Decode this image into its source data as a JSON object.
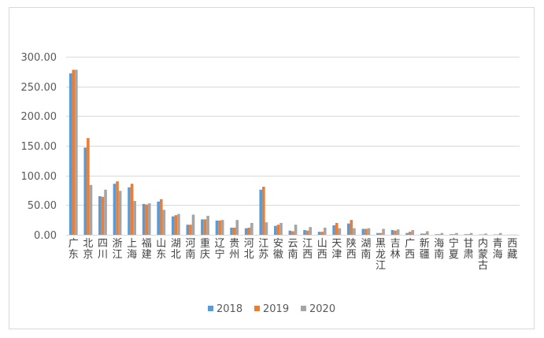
{
  "chart_data": {
    "type": "bar",
    "title": "",
    "xlabel": "",
    "ylabel": "",
    "ylim": [
      0,
      300
    ],
    "yticks": [
      "0.00",
      "50.00",
      "100.00",
      "150.00",
      "200.00",
      "250.00",
      "300.00"
    ],
    "grid": true,
    "legend_position": "bottom",
    "categories": [
      "广东",
      "北京",
      "四川",
      "浙江",
      "上海",
      "福建",
      "山东",
      "湖北",
      "河南",
      "重庆",
      "辽宁",
      "贵州",
      "河北",
      "江苏",
      "安徽",
      "云南",
      "江西",
      "山西",
      "天津",
      "陕西",
      "湖南",
      "黑龙江",
      "吉林",
      "广西",
      "新疆",
      "海南",
      "宁夏",
      "甘肃",
      "内蒙古",
      "青海",
      "西藏"
    ],
    "series": [
      {
        "name": "2018",
        "color": "#5b9bd5",
        "values": [
          272,
          147,
          65,
          86,
          80,
          52,
          56,
          31,
          17,
          26,
          24,
          12,
          11,
          76,
          15,
          7,
          8,
          5,
          16,
          19,
          10,
          3,
          8,
          3,
          2,
          1,
          1,
          1,
          0.5,
          0.5,
          0.2
        ]
      },
      {
        "name": "2019",
        "color": "#ed7d31",
        "values": [
          278,
          163,
          64,
          90,
          86,
          51,
          60,
          33,
          17,
          26,
          24,
          12,
          12,
          81,
          17,
          6,
          7,
          5,
          20,
          25,
          10,
          3,
          7,
          5,
          2,
          1,
          1,
          1,
          0.5,
          0.5,
          0.2
        ]
      },
      {
        "name": "2020",
        "color": "#a5a5a5",
        "values": [
          278,
          84,
          76,
          74,
          57,
          53,
          42,
          35,
          34,
          32,
          25,
          25,
          20,
          21,
          20,
          17,
          13,
          12,
          11,
          11,
          11,
          10,
          9,
          8,
          6,
          3,
          3,
          3,
          2,
          3,
          0.3
        ]
      }
    ]
  }
}
